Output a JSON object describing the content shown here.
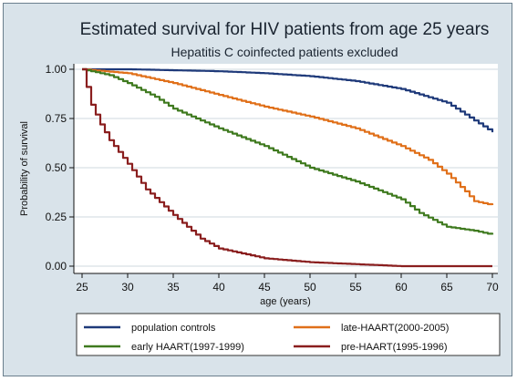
{
  "chart_data": {
    "type": "line",
    "title": "Estimated survival for HIV patients from age 25 years",
    "subtitle": "Hepatitis C coinfected patients excluded",
    "xlabel": "age (years)",
    "ylabel": "Probability of survival",
    "xlim": [
      25,
      70
    ],
    "ylim": [
      0,
      1
    ],
    "xticks": [
      "25",
      "30",
      "35",
      "40",
      "45",
      "50",
      "55",
      "60",
      "65",
      "70"
    ],
    "yticks": [
      "0.00",
      "0.25",
      "0.50",
      "0.75",
      "1.00"
    ],
    "grid": true,
    "legend_position": "bottom",
    "series": [
      {
        "name": "population controls",
        "color": "#1f3a7a",
        "points": [
          [
            25,
            1.0
          ],
          [
            30,
            1.0
          ],
          [
            35,
            0.995
          ],
          [
            40,
            0.99
          ],
          [
            45,
            0.98
          ],
          [
            50,
            0.965
          ],
          [
            55,
            0.94
          ],
          [
            60,
            0.9
          ],
          [
            65,
            0.83
          ],
          [
            70,
            0.68
          ]
        ]
      },
      {
        "name": "late-HAART(2000-2005)",
        "color": "#e0701a",
        "points": [
          [
            25,
            1.0
          ],
          [
            30,
            0.98
          ],
          [
            35,
            0.93
          ],
          [
            40,
            0.87
          ],
          [
            45,
            0.81
          ],
          [
            50,
            0.76
          ],
          [
            55,
            0.7
          ],
          [
            60,
            0.61
          ],
          [
            63,
            0.54
          ],
          [
            65,
            0.47
          ],
          [
            67,
            0.38
          ],
          [
            68,
            0.33
          ],
          [
            70,
            0.31
          ]
        ]
      },
      {
        "name": "early HAART(1997-1999)",
        "color": "#3f7a1f",
        "points": [
          [
            25,
            1.0
          ],
          [
            28,
            0.97
          ],
          [
            30,
            0.93
          ],
          [
            33,
            0.86
          ],
          [
            35,
            0.8
          ],
          [
            40,
            0.7
          ],
          [
            45,
            0.61
          ],
          [
            50,
            0.5
          ],
          [
            55,
            0.43
          ],
          [
            60,
            0.34
          ],
          [
            62,
            0.27
          ],
          [
            65,
            0.2
          ],
          [
            68,
            0.18
          ],
          [
            70,
            0.16
          ]
        ]
      },
      {
        "name": "pre-HAART(1995-1996)",
        "color": "#8a1e1e",
        "points": [
          [
            25,
            1.0
          ],
          [
            26,
            0.82
          ],
          [
            27,
            0.72
          ],
          [
            28,
            0.64
          ],
          [
            30,
            0.52
          ],
          [
            32,
            0.39
          ],
          [
            35,
            0.26
          ],
          [
            38,
            0.14
          ],
          [
            40,
            0.09
          ],
          [
            45,
            0.04
          ],
          [
            50,
            0.02
          ],
          [
            55,
            0.01
          ],
          [
            60,
            0.0
          ],
          [
            70,
            0.0
          ]
        ]
      }
    ]
  }
}
